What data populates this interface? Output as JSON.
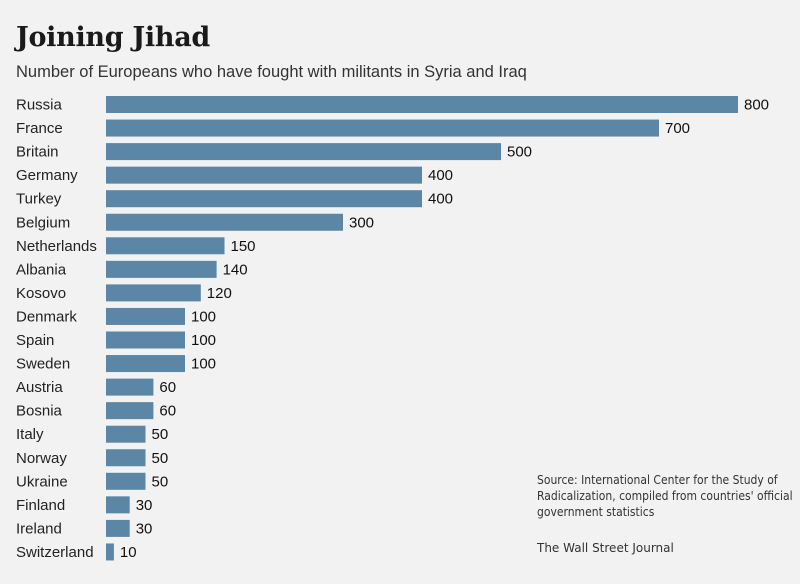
{
  "chart_data": {
    "type": "bar",
    "orientation": "horizontal",
    "title": "Joining Jihad",
    "subtitle": "Number of Europeans who have fought with militants in Syria and Iraq",
    "categories": [
      "Russia",
      "France",
      "Britain",
      "Germany",
      "Turkey",
      "Belgium",
      "Netherlands",
      "Albania",
      "Kosovo",
      "Denmark",
      "Spain",
      "Sweden",
      "Austria",
      "Bosnia",
      "Italy",
      "Norway",
      "Ukraine",
      "Finland",
      "Ireland",
      "Switzerland"
    ],
    "values": [
      800,
      700,
      500,
      400,
      400,
      300,
      150,
      140,
      120,
      100,
      100,
      100,
      60,
      60,
      50,
      50,
      50,
      30,
      30,
      10
    ],
    "xlim": [
      0,
      800
    ],
    "bar_color": "#5b86a6",
    "grid": false,
    "source": "Source: International Center for the Study of Radicalization, compiled from countries' official government statistics",
    "credit": "The Wall Street Journal"
  }
}
